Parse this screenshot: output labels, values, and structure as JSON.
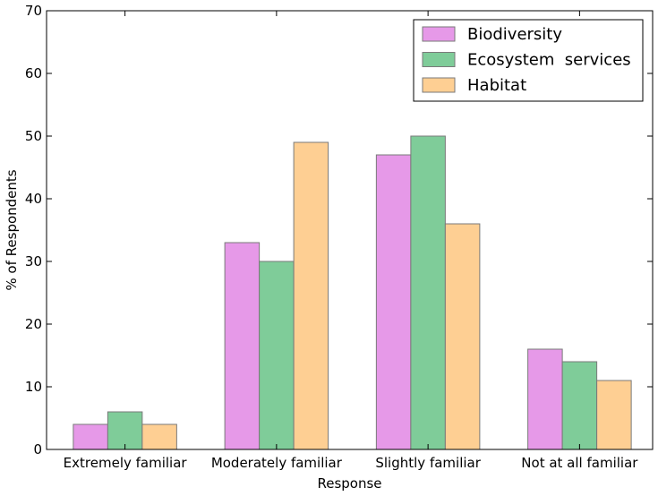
{
  "chart_data": {
    "type": "bar",
    "xlabel": "Response",
    "ylabel": "% of Respondents",
    "ylim": [
      0,
      70
    ],
    "yticks": [
      0,
      10,
      20,
      30,
      40,
      50,
      60,
      70
    ],
    "categories": [
      "Extremely familiar",
      "Moderately familiar",
      "Slightly familiar",
      "Not at all familiar"
    ],
    "series": [
      {
        "name": "Biodiversity",
        "color": "#e699e8",
        "values": [
          4,
          33,
          47,
          16
        ]
      },
      {
        "name": "Ecosystem  services",
        "color": "#7fcc99",
        "values": [
          6,
          30,
          50,
          14
        ]
      },
      {
        "name": "Habitat",
        "color": "#fecf93",
        "values": [
          4,
          49,
          36,
          11
        ]
      }
    ],
    "legend_position": "top-right",
    "grid": false
  }
}
